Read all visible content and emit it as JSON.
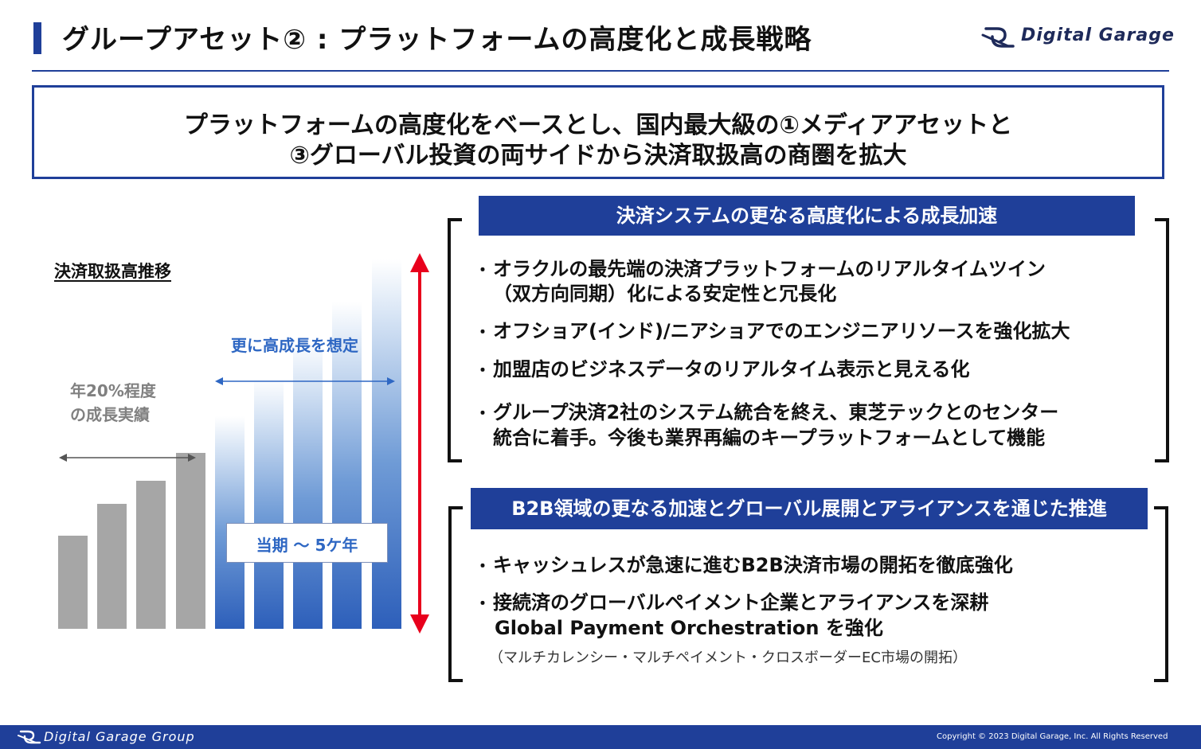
{
  "header": {
    "title": "グループアセット② : プラットフォームの高度化と成長戦略",
    "logo_text": "Digital Garage"
  },
  "key_message": {
    "line1": "プラットフォームの高度化をベースとし、国内最大級の①メディアアセットと",
    "line2": "③グローバル投資の両サイドから決済取扱高の商圏を拡大"
  },
  "chart": {
    "title": "決済取扱高推移",
    "past_label_line1": "年20%程度",
    "past_label_line2": "の成長実績",
    "future_label": "更に高成長を想定",
    "period_label": "当期 〜 5ケ年"
  },
  "chart_data": {
    "type": "bar",
    "categories": [
      "",
      "",
      "",
      "",
      "",
      "",
      "",
      "",
      ""
    ],
    "values": [
      1.0,
      1.34,
      1.58,
      1.88,
      2.27,
      2.67,
      3.08,
      3.5,
      3.95
    ],
    "colors": [
      "#a6a6a6",
      "#a6a6a6",
      "#a6a6a6",
      "#a6a6a6",
      "#2d5fba",
      "#2d5fba",
      "#2d5fba",
      "#2d5fba",
      "#2d5fba"
    ],
    "ylim": [
      0,
      4.0
    ],
    "grid": false
  },
  "panel1": {
    "header": "決済システムの更なる高度化による成長加速",
    "bullet_mark": "・",
    "items": [
      "オラクルの最先端の決済プラットフォームのリアルタイムツイン",
      "（双方向同期）化による安定性と冗長化",
      "オフショア(インド)/ニアショアでのエンジニアリソースを強化拡大",
      "加盟店のビジネスデータのリアルタイム表示と見える化",
      "グループ決済2社のシステム統合を終え、東芝テックとのセンター",
      "統合に着手。今後も業界再編のキープラットフォームとして機能"
    ]
  },
  "panel2": {
    "header": "B2B領域の更なる加速とグローバル展開とアライアンスを通じた推進",
    "bullet_mark": "・",
    "items": [
      "キャッシュレスが急速に進むB2B決済市場の開拓を徹底強化",
      "接続済のグローバルペイメント企業とアライアンスを深耕",
      "Global Payment Orchestration を強化"
    ],
    "note": "（マルチカレンシー・マルチペイメント・クロスボーダーEC市場の開拓）"
  },
  "footer": {
    "brand": "Digital Garage Group",
    "copyright": "Copyright © 2023 Digital Garage, Inc. All Rights Reserved"
  },
  "colors": {
    "brand_navy": "#1f3f99",
    "bar_gray": "#a6a6a6",
    "bar_blue": "#2d5fba",
    "accent_red": "#e8001c",
    "label_blue": "#2e67c3"
  }
}
